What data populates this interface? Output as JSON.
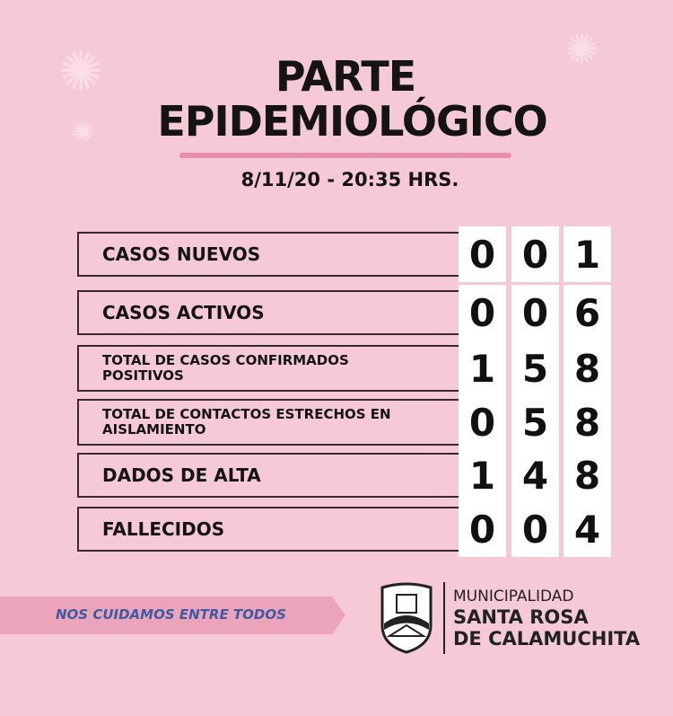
{
  "title_line1": "PARTE",
  "title_line2": "EPIDEMIOLÓGICO",
  "date": "8/11/20 - 20:35 HRS.",
  "rows": [
    {
      "label": "CASOS NUEVOS",
      "digits": [
        "0",
        "0",
        "1"
      ]
    },
    {
      "label": "CASOS ACTIVOS",
      "digits": [
        "0",
        "0",
        "6"
      ]
    },
    {
      "label": "TOTAL DE CASOS CONFIRMADOS POSITIVOS",
      "digits": [
        "1",
        "5",
        "8"
      ]
    },
    {
      "label": "TOTAL DE CONTACTOS ESTRECHOS EN AISLAMIENTO",
      "digits": [
        "0",
        "5",
        "8"
      ]
    },
    {
      "label": "DADOS DE ALTA",
      "digits": [
        "1",
        "4",
        "8"
      ]
    },
    {
      "label": "FALLECIDOS",
      "digits": [
        "0",
        "0",
        "4"
      ]
    }
  ],
  "slogan": "NOS CUIDAMOS ENTRE TODOS",
  "municipality": {
    "line1": "MUNICIPALIDAD",
    "line2": "SANTA ROSA",
    "line3": "DE CALAMUCHITA"
  },
  "colors": {
    "background": "#f5cad6",
    "banner": "#eba4b9",
    "slogan": "#3e5ba3"
  }
}
